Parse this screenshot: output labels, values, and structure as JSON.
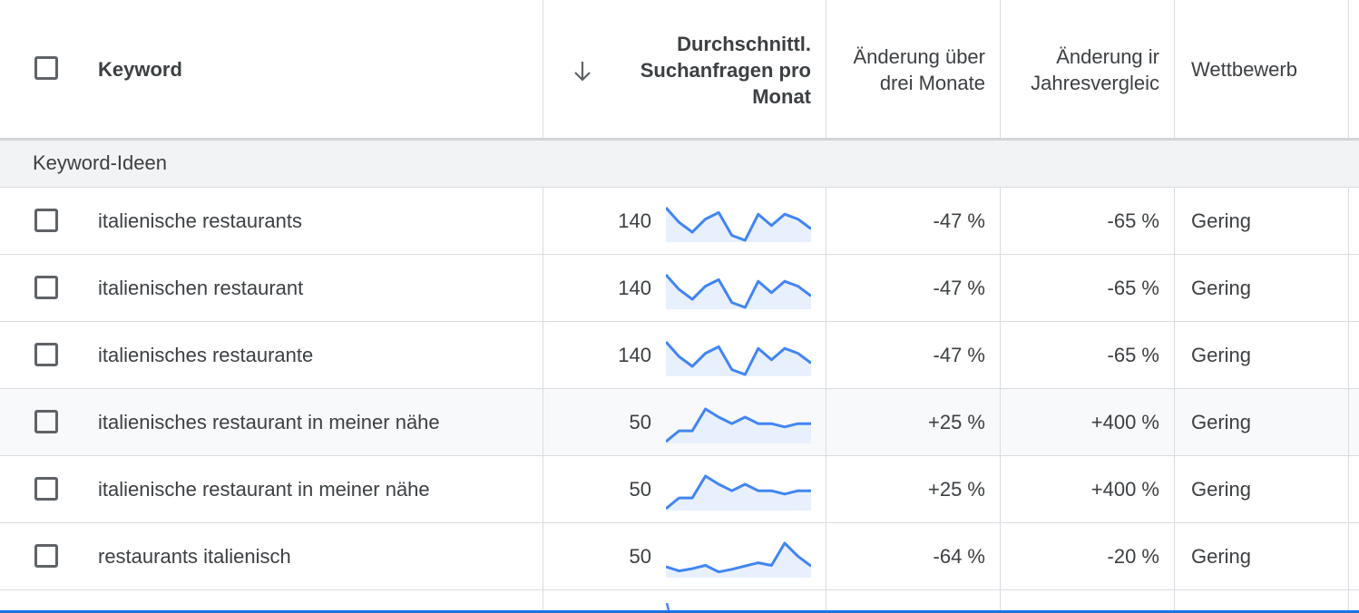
{
  "header": {
    "keyword": "Keyword",
    "avg_searches_lines": [
      "Durchschnittl.",
      "Suchanfragen pro",
      "Monat"
    ],
    "three_month_lines": [
      "Änderung über",
      "drei Monate"
    ],
    "yoy_lines": [
      "Änderung ir",
      "Jahresvergleic"
    ],
    "competition": "Wettbewerb",
    "sort_icon": "arrow-down-icon"
  },
  "group": {
    "label": "Keyword-Ideen"
  },
  "rows": [
    {
      "keyword": "italienische restaurants",
      "avg": "140",
      "three_month": "-47 %",
      "yoy": "-65 %",
      "competition": "Gering",
      "trend": [
        0.0,
        0.45,
        0.75,
        0.35,
        0.15,
        0.85,
        1.0,
        0.2,
        0.55,
        0.2,
        0.35,
        0.65
      ],
      "highlighted": false
    },
    {
      "keyword": "italienischen restaurant",
      "avg": "140",
      "three_month": "-47 %",
      "yoy": "-65 %",
      "competition": "Gering",
      "trend": [
        0.0,
        0.45,
        0.75,
        0.35,
        0.15,
        0.85,
        1.0,
        0.2,
        0.55,
        0.2,
        0.35,
        0.65
      ],
      "highlighted": false
    },
    {
      "keyword": "italienisches restaurante",
      "avg": "140",
      "three_month": "-47 %",
      "yoy": "-65 %",
      "competition": "Gering",
      "trend": [
        0.0,
        0.45,
        0.75,
        0.35,
        0.15,
        0.85,
        1.0,
        0.2,
        0.55,
        0.2,
        0.35,
        0.65
      ],
      "highlighted": false
    },
    {
      "keyword": "italienisches restaurant in meiner nähe",
      "avg": "50",
      "three_month": "+25 %",
      "yoy": "+400 %",
      "competition": "Gering",
      "trend": [
        1.0,
        0.67,
        0.67,
        0.0,
        0.25,
        0.45,
        0.25,
        0.45,
        0.45,
        0.55,
        0.45,
        0.45
      ],
      "highlighted": true
    },
    {
      "keyword": "italienische restaurant in meiner nähe",
      "avg": "50",
      "three_month": "+25 %",
      "yoy": "+400 %",
      "competition": "Gering",
      "trend": [
        1.0,
        0.67,
        0.67,
        0.0,
        0.25,
        0.45,
        0.25,
        0.45,
        0.45,
        0.55,
        0.45,
        0.45
      ],
      "highlighted": false
    },
    {
      "keyword": "restaurants italienisch",
      "avg": "50",
      "three_month": "-64 %",
      "yoy": "-20 %",
      "competition": "Gering",
      "trend": [
        0.72,
        0.85,
        0.78,
        0.68,
        0.88,
        0.8,
        0.7,
        0.6,
        0.68,
        0.0,
        0.4,
        0.7
      ],
      "highlighted": false
    }
  ],
  "colors": {
    "accent": "#1a73e8",
    "spark_line": "#4285f4",
    "spark_fill": "#e8f0fe",
    "divider": "#dadce0"
  }
}
